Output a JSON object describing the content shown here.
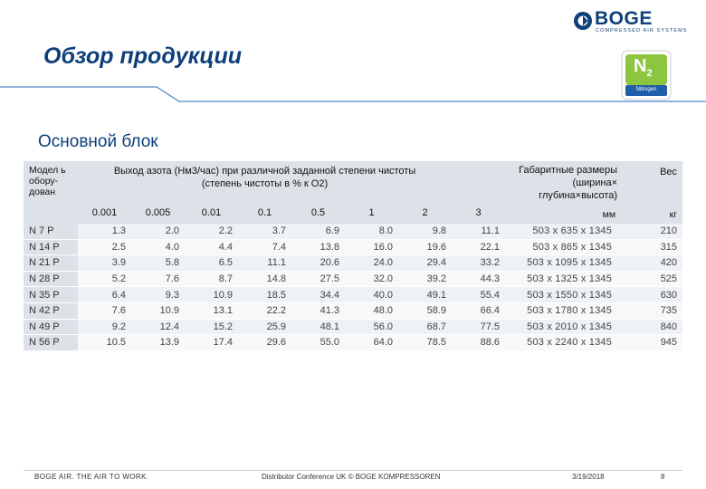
{
  "header": {
    "logo_text": "BOGE",
    "logo_subtext": "COMPRESSED AIR SYSTEMS",
    "title": "Обзор продукции",
    "badge_symbol": "N",
    "badge_subscript": "2",
    "badge_label": "Nitrogen"
  },
  "section": {
    "subtitle": "Основной блок"
  },
  "table": {
    "col_model": "Модел ь обору- дован",
    "col_flow_line1": "Выход азота (Нм3/час) при различной заданной степени чистоты",
    "col_flow_line2": "(степень чистоты в % к O2)",
    "col_dims_line1": "Габаритные размеры",
    "col_dims_line2": "(ширина×",
    "col_dims_line3": "глубина×высота)",
    "col_dims_unit": "мм",
    "col_weight": "Вес",
    "col_weight_unit": "кг",
    "purities": [
      "0.001",
      "0.005",
      "0.01",
      "0.1",
      "0.5",
      "1",
      "2",
      "3"
    ],
    "rows": [
      {
        "model": "N 7 P",
        "values": [
          "1.3",
          "2.0",
          "2.2",
          "3.7",
          "6.9",
          "8.0",
          "9.8",
          "11.1"
        ],
        "dims": "503 x  635 x 1345",
        "weight": "210"
      },
      {
        "model": "N 14 P",
        "values": [
          "2.5",
          "4.0",
          "4.4",
          "7.4",
          "13.8",
          "16.0",
          "19.6",
          "22.1"
        ],
        "dims": "503 x  865 x 1345",
        "weight": "315"
      },
      {
        "model": "N 21 P",
        "values": [
          "3.9",
          "5.8",
          "6.5",
          "11.1",
          "20.6",
          "24.0",
          "29.4",
          "33.2"
        ],
        "dims": "503 x 1095 x 1345",
        "weight": "420"
      },
      {
        "model": "N 28 P",
        "values": [
          "5.2",
          "7.6",
          "8.7",
          "14.8",
          "27.5",
          "32.0",
          "39.2",
          "44.3"
        ],
        "dims": "503 x 1325 x 1345",
        "weight": "525"
      },
      {
        "model": "N 35 P",
        "values": [
          "6.4",
          "9.3",
          "10.9",
          "18.5",
          "34.4",
          "40.0",
          "49.1",
          "55.4"
        ],
        "dims": "503 x 1550 x 1345",
        "weight": "630"
      },
      {
        "model": "N 42 P",
        "values": [
          "7.6",
          "10.9",
          "13.1",
          "22.2",
          "41.3",
          "48.0",
          "58.9",
          "66.4"
        ],
        "dims": "503 x 1780 x 1345",
        "weight": "735"
      },
      {
        "model": "N 49 P",
        "values": [
          "9.2",
          "12.4",
          "15.2",
          "25.9",
          "48.1",
          "56.0",
          "68.7",
          "77.5"
        ],
        "dims": "503 x 2010 x 1345",
        "weight": "840"
      },
      {
        "model": "N 56 P",
        "values": [
          "10.5",
          "13.9",
          "17.4",
          "29.6",
          "55.0",
          "64.0",
          "78.5",
          "88.6"
        ],
        "dims": "503 x 2240 x 1345",
        "weight": "945"
      }
    ]
  },
  "footer": {
    "slogan": "BOGE AIR. THE AIR TO WORK.",
    "center": "Distributor Conference UK © BOGE KOMPRESSOREN",
    "date": "3/19/2018",
    "page": "8"
  },
  "colors": {
    "brand_blue": "#0d3f7a",
    "header_gray": "#dde2e8",
    "row_light": "#eef1f5",
    "badge_green": "#8cc63f"
  }
}
